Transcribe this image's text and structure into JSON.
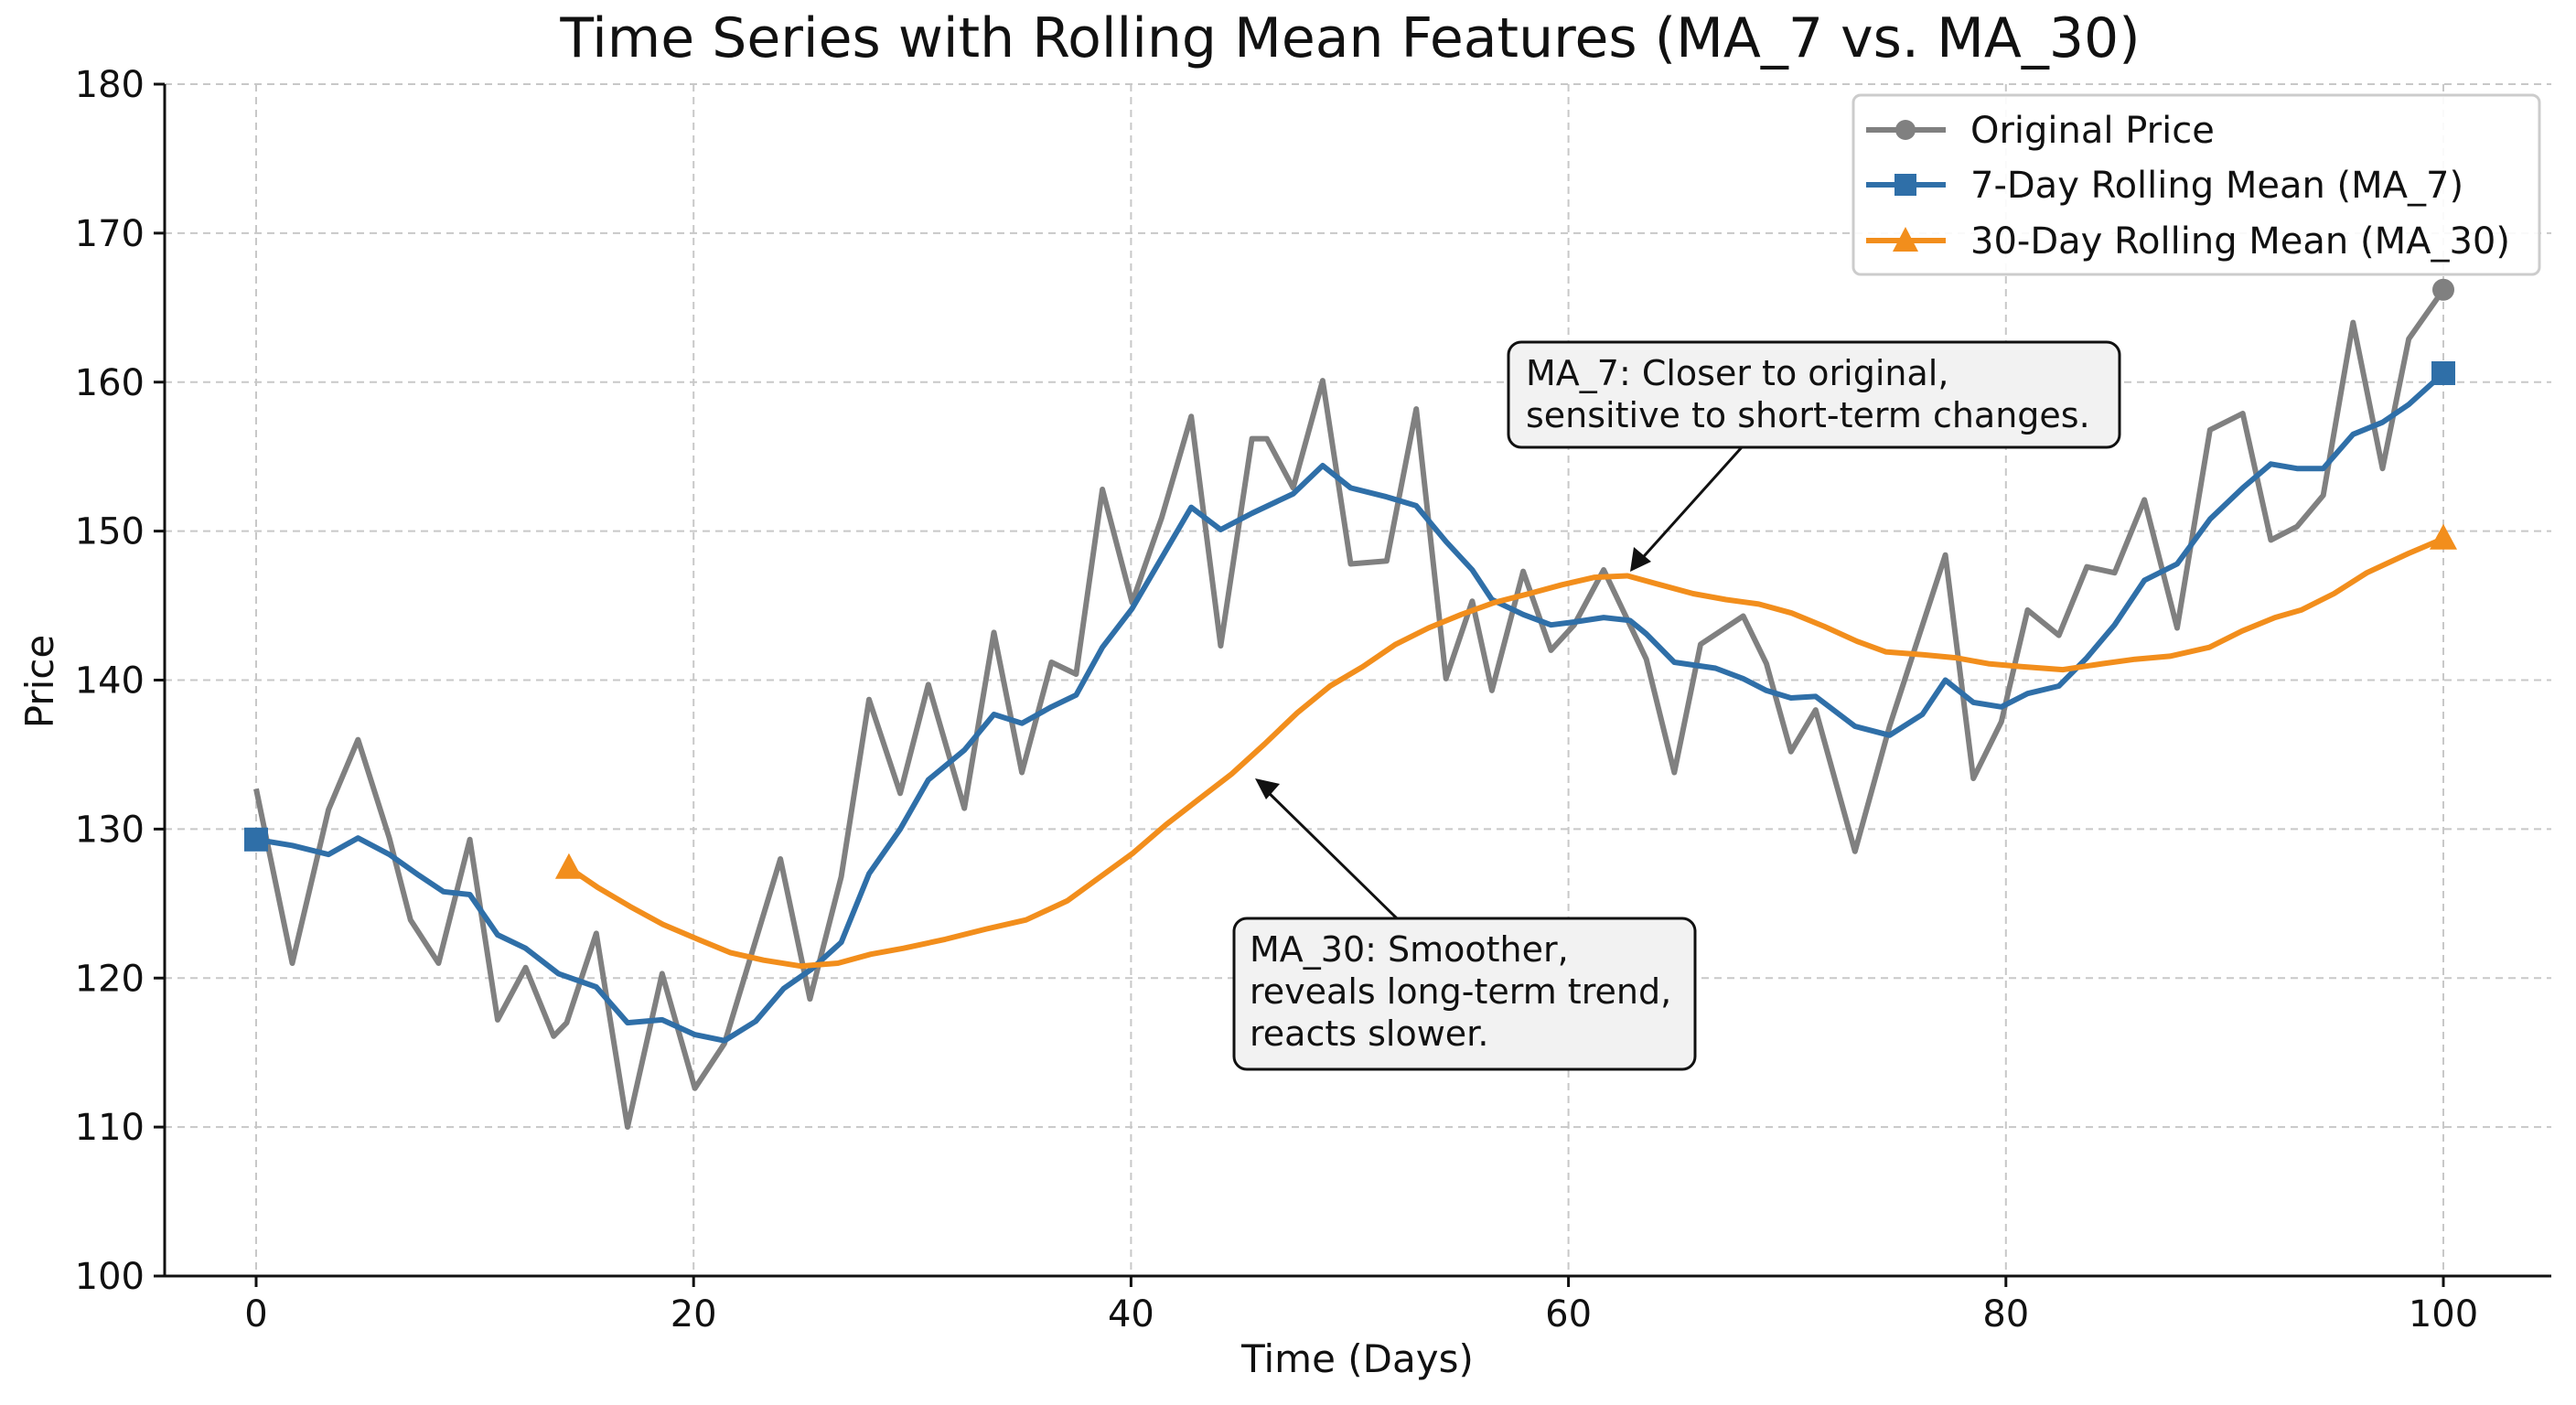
{
  "chart_data": {
    "type": "line",
    "title": "Time Series with Rolling Mean Features (MA_7 vs. MA_30)",
    "xlabel": "Time (Days)",
    "ylabel": "Price",
    "xlim": [
      -4.2,
      105
    ],
    "ylim": [
      100,
      180
    ],
    "xticks": [
      0,
      20,
      40,
      60,
      80,
      100
    ],
    "yticks": [
      100,
      110,
      120,
      130,
      140,
      150,
      160,
      170,
      180
    ],
    "grid": true,
    "legend_position": "top-right",
    "series": [
      {
        "name": "Original Price",
        "color": "#808080",
        "marker": "circle",
        "x": [
          0,
          1.65,
          3.31,
          4.66,
          6.09,
          7.06,
          8.34,
          9.77,
          11.04,
          12.32,
          13.6,
          14.2,
          15.55,
          16.98,
          18.56,
          20.06,
          21.41,
          23.97,
          25.32,
          26.75,
          28.02,
          29.45,
          30.73,
          32.38,
          33.73,
          35.01,
          36.36,
          37.49,
          38.69,
          40.05,
          41.4,
          42.75,
          44.1,
          45.53,
          46.21,
          47.41,
          48.76,
          50.04,
          51.69,
          53.04,
          54.4,
          55.6,
          56.5,
          57.93,
          59.2,
          60.26,
          61.61,
          63.56,
          64.84,
          66.04,
          67.99,
          69.05,
          70.17,
          71.3,
          73.1,
          74.68,
          77.23,
          78.51,
          79.79,
          80.99,
          82.42,
          83.7,
          84.97,
          86.33,
          87.83,
          89.33,
          90.83,
          92.11,
          93.31,
          94.51,
          95.87,
          97.22,
          98.42,
          100
        ],
        "y": [
          132.7,
          121,
          131.3,
          136,
          129.4,
          123.9,
          121,
          129.3,
          117.2,
          120.7,
          116.1,
          117,
          123,
          110,
          120.3,
          112.6,
          115.6,
          128,
          118.6,
          126.8,
          138.7,
          132.4,
          139.7,
          131.4,
          143.2,
          133.8,
          141.2,
          140.4,
          152.8,
          145.2,
          150.9,
          157.7,
          142.3,
          156.2,
          156.2,
          152.9,
          160.1,
          147.8,
          148,
          158.2,
          140.1,
          145.3,
          139.3,
          147.3,
          142,
          143.7,
          147.4,
          141.4,
          133.8,
          142.4,
          144.3,
          141.1,
          135.2,
          138,
          128.5,
          136.9,
          148.4,
          133.4,
          137.2,
          144.7,
          143,
          147.6,
          147.2,
          152.1,
          143.5,
          156.8,
          157.9,
          149.4,
          150.3,
          152.4,
          164,
          154.2,
          162.9,
          166.2
        ]
      },
      {
        "name": "7-Day Rolling Mean (MA_7)",
        "color": "#2f6fa8",
        "marker": "square",
        "x": [
          0,
          1.65,
          3.31,
          4.66,
          6.09,
          7.44,
          8.56,
          9.77,
          11.04,
          12.32,
          13.82,
          15.55,
          16.98,
          18.56,
          20.06,
          21.41,
          22.84,
          24.12,
          25.39,
          26.75,
          28.02,
          29.45,
          30.73,
          32.38,
          33.73,
          35.01,
          36.36,
          37.49,
          38.69,
          40.05,
          41.4,
          42.75,
          44.1,
          45.53,
          47.41,
          48.76,
          50.04,
          51.69,
          53.04,
          54.4,
          55.6,
          56.5,
          57.93,
          59.2,
          60.26,
          61.61,
          62.81,
          63.56,
          64.84,
          66.72,
          67.99,
          69.05,
          70.17,
          71.3,
          73.1,
          74.68,
          76.18,
          77.23,
          78.51,
          79.79,
          80.99,
          82.42,
          83.7,
          84.97,
          86.33,
          87.83,
          89.33,
          90.83,
          92.11,
          93.31,
          94.51,
          95.87,
          97.22,
          98.42,
          100
        ],
        "y": [
          129.3,
          128.9,
          128.3,
          129.4,
          128.3,
          126.9,
          125.8,
          125.6,
          122.9,
          122,
          120.3,
          119.4,
          117,
          117.2,
          116.2,
          115.8,
          117.1,
          119.3,
          120.6,
          122.4,
          127,
          130,
          133.3,
          135.3,
          137.7,
          137.1,
          138.2,
          139,
          142.2,
          144.8,
          148.2,
          151.6,
          150.1,
          151.2,
          152.5,
          154.4,
          152.9,
          152.3,
          151.7,
          149.3,
          147.4,
          145.4,
          144.4,
          143.7,
          143.9,
          144.2,
          144,
          143.1,
          141.2,
          140.8,
          140.1,
          139.3,
          138.8,
          138.9,
          136.9,
          136.3,
          137.7,
          140,
          138.5,
          138.2,
          139.1,
          139.6,
          141.5,
          143.7,
          146.7,
          147.8,
          150.8,
          152.9,
          154.5,
          154.2,
          154.2,
          156.5,
          157.3,
          158.5,
          160.6
        ]
      },
      {
        "name": "30-Day Rolling Mean (MA_30)",
        "color": "#f28e1c",
        "marker": "triangle",
        "x": [
          14.3,
          15.6,
          17.1,
          18.6,
          20.2,
          21.7,
          23.2,
          24.9,
          26.6,
          28.1,
          29.6,
          31.5,
          33.4,
          35.2,
          37.1,
          38.6,
          40.1,
          41.6,
          43.1,
          44.6,
          46.1,
          47.6,
          49.1,
          50.6,
          52.1,
          53.6,
          55.1,
          56.6,
          58.2,
          59.7,
          61.2,
          62.7,
          64.2,
          65.7,
          67.2,
          68.7,
          70.2,
          71.7,
          73.2,
          74.5,
          76.2,
          77.7,
          79.2,
          80.7,
          82.6,
          84.4,
          85.9,
          87.5,
          89.3,
          90.8,
          92.3,
          93.5,
          95.0,
          96.5,
          98.4,
          100
        ],
        "y": [
          127.4,
          126.1,
          124.8,
          123.6,
          122.6,
          121.7,
          121.2,
          120.8,
          121,
          121.6,
          122,
          122.6,
          123.3,
          123.9,
          125.2,
          126.8,
          128.4,
          130.3,
          132,
          133.7,
          135.7,
          137.8,
          139.6,
          140.9,
          142.4,
          143.5,
          144.4,
          145.2,
          145.8,
          146.4,
          146.9,
          147,
          146.4,
          145.8,
          145.4,
          145.1,
          144.5,
          143.6,
          142.6,
          141.9,
          141.7,
          141.5,
          141.1,
          140.9,
          140.7,
          141.1,
          141.4,
          141.6,
          142.2,
          143.3,
          144.2,
          144.7,
          145.8,
          147.2,
          148.5,
          149.5
        ]
      }
    ],
    "annotations": [
      {
        "lines": [
          "MA_7: Closer to original,",
          "sensitive to short-term changes."
        ],
        "target": [
          62.6,
          147
        ]
      },
      {
        "lines": [
          "MA_30: Smoother,",
          "reveals long-term trend,",
          "reacts slower."
        ],
        "target": [
          45.6,
          135.5
        ]
      }
    ]
  }
}
